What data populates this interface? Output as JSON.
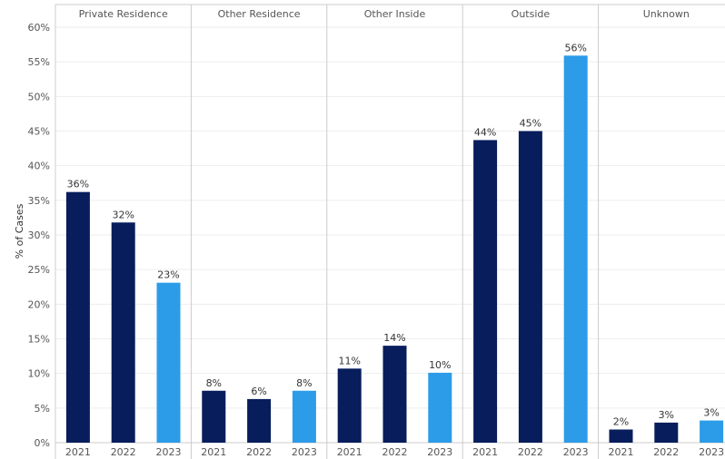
{
  "chart_data": {
    "type": "bar",
    "ylabel": "% of Cases",
    "ylim": [
      0,
      60
    ],
    "yticks": [
      0,
      5,
      10,
      15,
      20,
      25,
      30,
      35,
      40,
      45,
      50,
      55,
      60
    ],
    "ytick_labels": [
      "0%",
      "5%",
      "10%",
      "15%",
      "20%",
      "25%",
      "30%",
      "35%",
      "40%",
      "45%",
      "50%",
      "55%",
      "60%"
    ],
    "categories": [
      "2021",
      "2022",
      "2023"
    ],
    "panels": [
      {
        "title": "Private Residence",
        "values": [
          36.2,
          31.8,
          23.1
        ],
        "labels": [
          "36%",
          "32%",
          "23%"
        ]
      },
      {
        "title": "Other Residence",
        "values": [
          7.5,
          6.3,
          7.5
        ],
        "labels": [
          "8%",
          "6%",
          "8%"
        ]
      },
      {
        "title": "Other Inside",
        "values": [
          10.7,
          14.0,
          10.1
        ],
        "labels": [
          "11%",
          "14%",
          "10%"
        ]
      },
      {
        "title": "Outside",
        "values": [
          43.7,
          45.0,
          55.9
        ],
        "labels": [
          "44%",
          "45%",
          "56%"
        ]
      },
      {
        "title": "Unknown",
        "values": [
          1.9,
          2.9,
          3.2
        ],
        "labels": [
          "2%",
          "3%",
          "3%"
        ]
      }
    ],
    "colors": {
      "past": "#071d5c",
      "current": "#2c9be8",
      "grid": "#eeeeee",
      "divider": "#cccccc"
    },
    "grid": true
  }
}
